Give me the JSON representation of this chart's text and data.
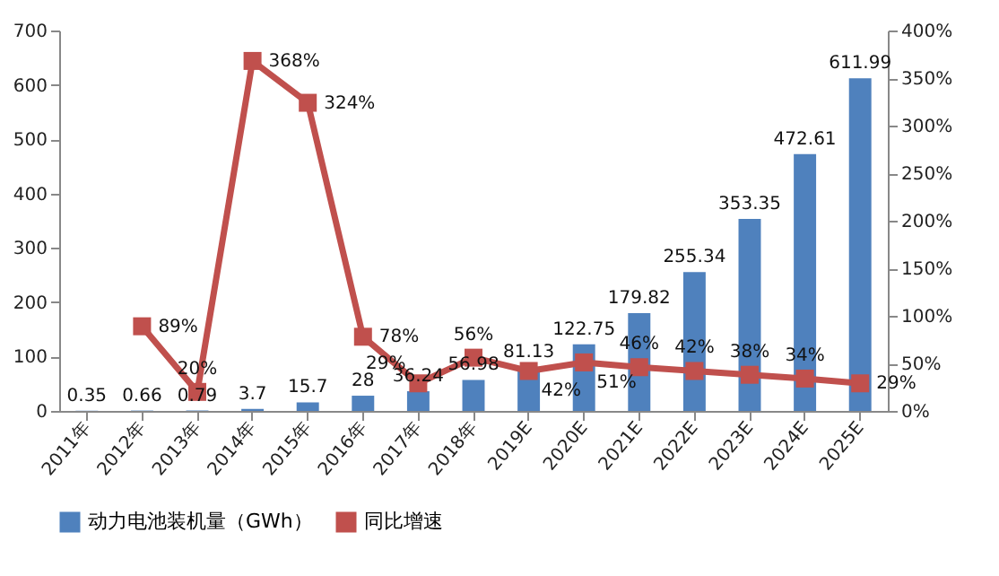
{
  "chart_data": {
    "type": "bar",
    "categories": [
      "2011年",
      "2012年",
      "2013年",
      "2014年",
      "2015年",
      "2016年",
      "2017年",
      "2018年",
      "2019E",
      "2020E",
      "2021E",
      "2022E",
      "2023E",
      "2024E",
      "2025E"
    ],
    "series": [
      {
        "name": "动力电池装机量（GWh）",
        "type": "bar",
        "color": "#4f81bd",
        "values": [
          0.35,
          0.66,
          0.79,
          3.7,
          15.7,
          28,
          36.24,
          56.98,
          81.13,
          122.75,
          179.82,
          255.34,
          353.35,
          472.61,
          611.99
        ],
        "value_labels": [
          "0.35",
          "0.66",
          "0.79",
          "3.7",
          "15.7",
          "28",
          "36.24",
          "56.98",
          "81.13",
          "122.75",
          "179.82",
          "255.34",
          "353.35",
          "472.61",
          "611.99"
        ]
      },
      {
        "name": "同比增速",
        "type": "line",
        "axis": "y2",
        "color": "#c0504d",
        "values": [
          null,
          89,
          20,
          368,
          324,
          78,
          29,
          56,
          42,
          51,
          46,
          42,
          38,
          34,
          29
        ],
        "value_labels": [
          null,
          "89%",
          "20%",
          "368%",
          "324%",
          "78%",
          "29%",
          "56%",
          "42%",
          "51%",
          "46%",
          "42%",
          "38%",
          "34%",
          "29%"
        ]
      }
    ],
    "ylim": [
      0,
      700
    ],
    "yticks": [
      0,
      100,
      200,
      300,
      400,
      500,
      600,
      700
    ],
    "y2lim": [
      0,
      400
    ],
    "y2ticks": [
      {
        "value": 0,
        "label": "0%"
      },
      {
        "value": 50,
        "label": "50%"
      },
      {
        "value": 100,
        "label": "100%"
      },
      {
        "value": 150,
        "label": "150%"
      },
      {
        "value": 200,
        "label": "200%"
      },
      {
        "value": 250,
        "label": "250%"
      },
      {
        "value": 300,
        "label": "300%"
      },
      {
        "value": 350,
        "label": "350%"
      },
      {
        "value": 400,
        "label": "400%"
      }
    ],
    "marker": "square",
    "grid": false,
    "legend": "bottom"
  }
}
